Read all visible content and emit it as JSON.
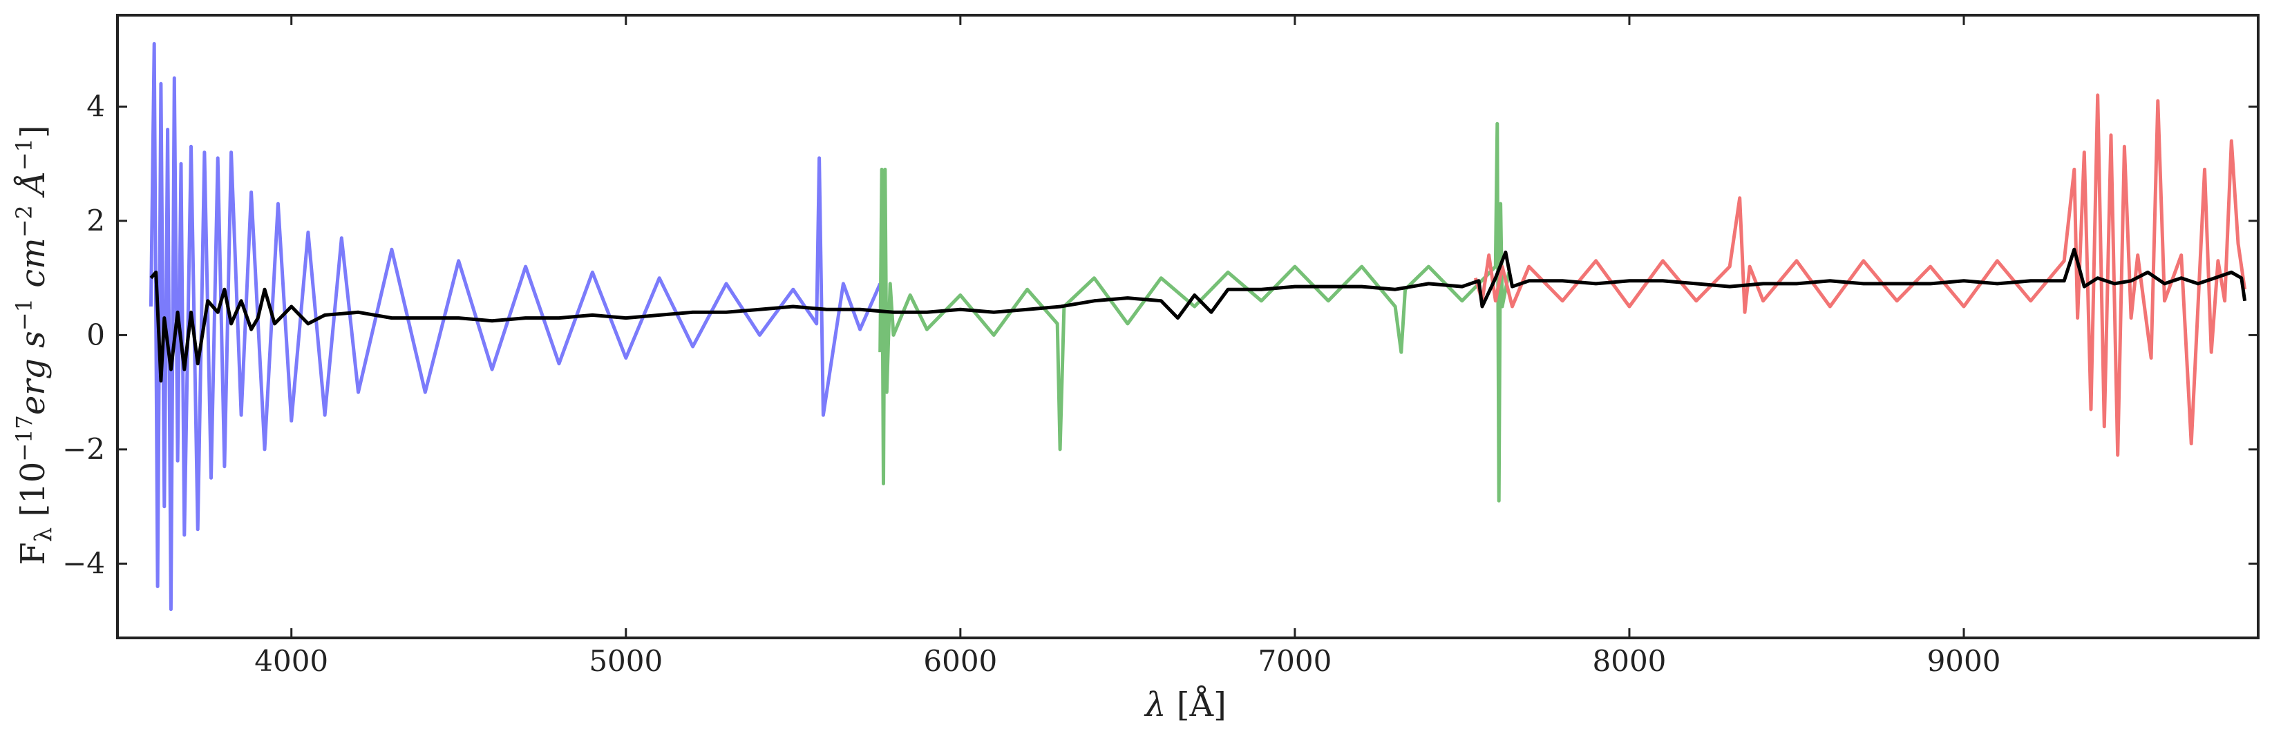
{
  "chart_data": {
    "type": "line",
    "title": "",
    "xlabel": {
      "sym": "λ",
      "unit": " [Å]"
    },
    "ylabel": {
      "pre": "F",
      "sub": "λ",
      "open": " [10",
      "exp17": "−17",
      "erg": "erg s",
      "exp1": "−1",
      "cm": " cm",
      "exp2": "−2",
      "ang": " Å",
      "exp1b": "−1",
      "close": "]"
    },
    "xlim": [
      3480,
      9880
    ],
    "ylim": [
      -5.3,
      5.6
    ],
    "xticks": [
      4000,
      5000,
      6000,
      7000,
      8000,
      9000
    ],
    "xtick_labels": [
      "4000",
      "5000",
      "6000",
      "7000",
      "8000",
      "9000"
    ],
    "yticks": [
      -4,
      -2,
      0,
      2,
      4
    ],
    "ytick_labels": [
      "−4",
      "−2",
      "0",
      "2",
      "4"
    ],
    "grid": false,
    "legend": "none",
    "series": [
      {
        "color": "#7b7bfb",
        "x": [
          3580,
          3590,
          3600,
          3610,
          3620,
          3630,
          3640,
          3650,
          3660,
          3670,
          3680,
          3700,
          3720,
          3740,
          3760,
          3780,
          3800,
          3820,
          3850,
          3880,
          3920,
          3960,
          4000,
          4050,
          4100,
          4150,
          4200,
          4300,
          4400,
          4500,
          4600,
          4700,
          4800,
          4900,
          5000,
          5100,
          5200,
          5300,
          5400,
          5500,
          5570,
          5578,
          5590,
          5650,
          5700,
          5760
        ],
        "y": [
          0.5,
          5.1,
          -4.4,
          4.4,
          -3.0,
          3.6,
          -4.8,
          4.5,
          -2.2,
          3.0,
          -3.5,
          3.3,
          -3.4,
          3.2,
          -2.5,
          3.1,
          -2.3,
          3.2,
          -1.4,
          2.5,
          -2.0,
          2.3,
          -1.5,
          1.8,
          -1.4,
          1.7,
          -1.0,
          1.5,
          -1.0,
          1.3,
          -0.6,
          1.2,
          -0.5,
          1.1,
          -0.4,
          1.0,
          -0.2,
          0.9,
          0.0,
          0.8,
          0.2,
          3.1,
          -1.4,
          0.9,
          0.1,
          0.9
        ]
      },
      {
        "color": "#76c076",
        "x": [
          5760,
          5765,
          5770,
          5775,
          5780,
          5790,
          5800,
          5850,
          5900,
          6000,
          6100,
          6200,
          6290,
          6298,
          6310,
          6400,
          6500,
          6600,
          6700,
          6800,
          6900,
          7000,
          7100,
          7200,
          7300,
          7318,
          7330,
          7400,
          7500,
          7600,
          7605,
          7610,
          7615,
          7620,
          7640
        ],
        "y": [
          -0.3,
          2.9,
          -2.6,
          2.9,
          -1.0,
          0.9,
          0.0,
          0.7,
          0.1,
          0.7,
          0.0,
          0.8,
          0.2,
          -2.0,
          0.5,
          1.0,
          0.2,
          1.0,
          0.5,
          1.1,
          0.6,
          1.2,
          0.6,
          1.2,
          0.5,
          -0.3,
          0.8,
          1.2,
          0.6,
          1.2,
          3.7,
          -2.9,
          2.3,
          0.5,
          1.1
        ]
      },
      {
        "color": "#f27474",
        "x": [
          7540,
          7560,
          7580,
          7600,
          7620,
          7650,
          7700,
          7800,
          7900,
          8000,
          8100,
          8200,
          8300,
          8330,
          8345,
          8360,
          8400,
          8500,
          8600,
          8700,
          8800,
          8900,
          9000,
          9100,
          9200,
          9300,
          9330,
          9340,
          9360,
          9380,
          9400,
          9420,
          9440,
          9460,
          9480,
          9500,
          9520,
          9560,
          9580,
          9600,
          9650,
          9680,
          9700,
          9720,
          9740,
          9760,
          9780,
          9800,
          9820,
          9840
        ],
        "y": [
          1.0,
          0.6,
          1.4,
          0.6,
          1.2,
          0.5,
          1.2,
          0.6,
          1.3,
          0.5,
          1.3,
          0.6,
          1.2,
          2.4,
          0.4,
          1.2,
          0.6,
          1.3,
          0.5,
          1.3,
          0.6,
          1.2,
          0.5,
          1.3,
          0.6,
          1.3,
          2.9,
          0.3,
          3.2,
          -1.3,
          4.2,
          -1.6,
          3.5,
          -2.1,
          3.3,
          0.3,
          1.4,
          -0.4,
          4.1,
          0.6,
          1.4,
          -1.9,
          0.5,
          2.9,
          -0.3,
          1.3,
          0.6,
          3.4,
          1.6,
          0.8
        ]
      },
      {
        "color": "#000000",
        "x": [
          3580,
          3595,
          3610,
          3620,
          3640,
          3660,
          3680,
          3700,
          3720,
          3750,
          3780,
          3800,
          3820,
          3850,
          3880,
          3900,
          3920,
          3950,
          4000,
          4050,
          4100,
          4200,
          4300,
          4400,
          4500,
          4600,
          4700,
          4800,
          4900,
          5000,
          5100,
          5200,
          5300,
          5400,
          5500,
          5600,
          5700,
          5800,
          5900,
          6000,
          6100,
          6200,
          6300,
          6400,
          6500,
          6600,
          6650,
          6700,
          6750,
          6800,
          6900,
          7000,
          7100,
          7200,
          7300,
          7400,
          7500,
          7550,
          7560,
          7600,
          7630,
          7650,
          7700,
          7800,
          7900,
          8000,
          8100,
          8200,
          8300,
          8400,
          8500,
          8600,
          8700,
          8800,
          8900,
          9000,
          9100,
          9200,
          9300,
          9330,
          9360,
          9400,
          9450,
          9500,
          9550,
          9600,
          9650,
          9700,
          9750,
          9800,
          9830,
          9840
        ],
        "y": [
          1.0,
          1.1,
          -0.8,
          0.3,
          -0.6,
          0.4,
          -0.6,
          0.4,
          -0.5,
          0.6,
          0.4,
          0.8,
          0.2,
          0.6,
          0.1,
          0.3,
          0.8,
          0.2,
          0.5,
          0.2,
          0.35,
          0.4,
          0.3,
          0.3,
          0.3,
          0.25,
          0.3,
          0.3,
          0.35,
          0.3,
          0.35,
          0.4,
          0.4,
          0.45,
          0.5,
          0.45,
          0.45,
          0.4,
          0.4,
          0.45,
          0.4,
          0.45,
          0.5,
          0.6,
          0.65,
          0.6,
          0.3,
          0.7,
          0.4,
          0.8,
          0.8,
          0.85,
          0.85,
          0.85,
          0.8,
          0.9,
          0.85,
          0.95,
          0.5,
          1.0,
          1.45,
          0.85,
          0.95,
          0.95,
          0.9,
          0.95,
          0.95,
          0.9,
          0.85,
          0.9,
          0.9,
          0.95,
          0.9,
          0.9,
          0.9,
          0.95,
          0.9,
          0.95,
          0.95,
          1.5,
          0.85,
          1.0,
          0.9,
          0.95,
          1.1,
          0.9,
          1.0,
          0.9,
          1.0,
          1.1,
          1.0,
          0.6
        ]
      }
    ]
  }
}
